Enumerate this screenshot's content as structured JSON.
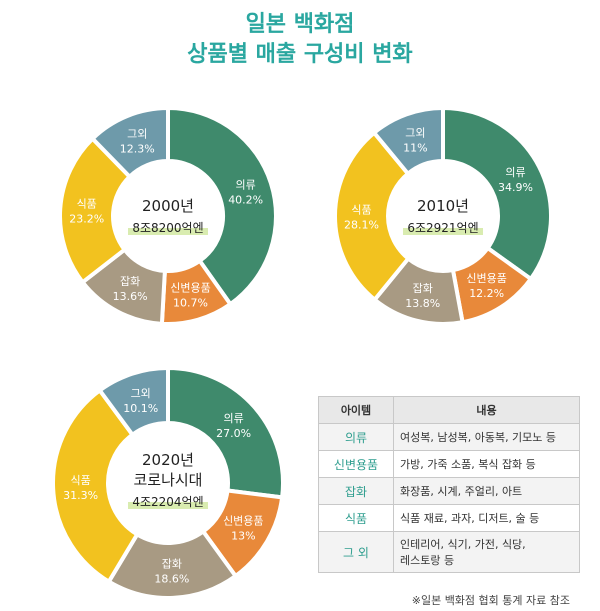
{
  "title": {
    "line1": "일본 백화점",
    "line2": "상품별 매출 구성비 변화"
  },
  "chart_data": [
    {
      "type": "pie",
      "center": {
        "year": "2000년",
        "amount": "8조8200억엔"
      },
      "slices": [
        {
          "name": "의류",
          "value": 40.2,
          "label": "40.2%",
          "color": "#3f8a6c"
        },
        {
          "name": "신변용품",
          "value": 10.7,
          "label": "10.7%",
          "color": "#e8893a"
        },
        {
          "name": "잡화",
          "value": 13.6,
          "label": "13.6%",
          "color": "#a89a83"
        },
        {
          "name": "식품",
          "value": 23.2,
          "label": "23.2%",
          "color": "#f2c21f"
        },
        {
          "name": "그외",
          "value": 12.3,
          "label": "12.3%",
          "color": "#6e9aaa"
        }
      ]
    },
    {
      "type": "pie",
      "center": {
        "year": "2010년",
        "amount": "6조2921억엔"
      },
      "slices": [
        {
          "name": "의류",
          "value": 34.9,
          "label": "34.9%",
          "color": "#3f8a6c"
        },
        {
          "name": "신변용품",
          "value": 12.2,
          "label": "12.2%",
          "color": "#e8893a"
        },
        {
          "name": "잡화",
          "value": 13.8,
          "label": "13.8%",
          "color": "#a89a83"
        },
        {
          "name": "식품",
          "value": 28.1,
          "label": "28.1%",
          "color": "#f2c21f"
        },
        {
          "name": "그외",
          "value": 11,
          "label": "11%",
          "color": "#6e9aaa"
        }
      ]
    },
    {
      "type": "pie",
      "center": {
        "year": "2020년",
        "subtitle": "코로나시대",
        "amount": "4조2204억엔"
      },
      "slices": [
        {
          "name": "의류",
          "value": 27.0,
          "label": "27.0%",
          "color": "#3f8a6c"
        },
        {
          "name": "신변용품",
          "value": 13,
          "label": "13%",
          "color": "#e8893a"
        },
        {
          "name": "잡화",
          "value": 18.6,
          "label": "18.6%",
          "color": "#a89a83"
        },
        {
          "name": "식품",
          "value": 31.3,
          "label": "31.3%",
          "color": "#f2c21f"
        },
        {
          "name": "그외",
          "value": 10.1,
          "label": "10.1%",
          "color": "#6e9aaa"
        }
      ]
    }
  ],
  "legend_table": {
    "headers": [
      "아이템",
      "내용"
    ],
    "rows": [
      {
        "item": "의류",
        "desc1": "여성복, 남성복, 아동복, 기모노 등",
        "desc2": ""
      },
      {
        "item": "신변용품",
        "desc1": "가방, 가죽 소품, 복식 잡화 등",
        "desc2": ""
      },
      {
        "item": "잡화",
        "desc1": "화장품, 시계, 주얼리, 아트",
        "desc2": ""
      },
      {
        "item": "식품",
        "desc1": "식품 재료, 과자, 디저트, 술 등",
        "desc2": ""
      },
      {
        "item": "그 외",
        "desc1": "인테리어, 식기, 가전, 식당,",
        "desc2": "레스토랑 등"
      }
    ]
  },
  "source": "※일본 백화점 협회 통계 자료 참조"
}
